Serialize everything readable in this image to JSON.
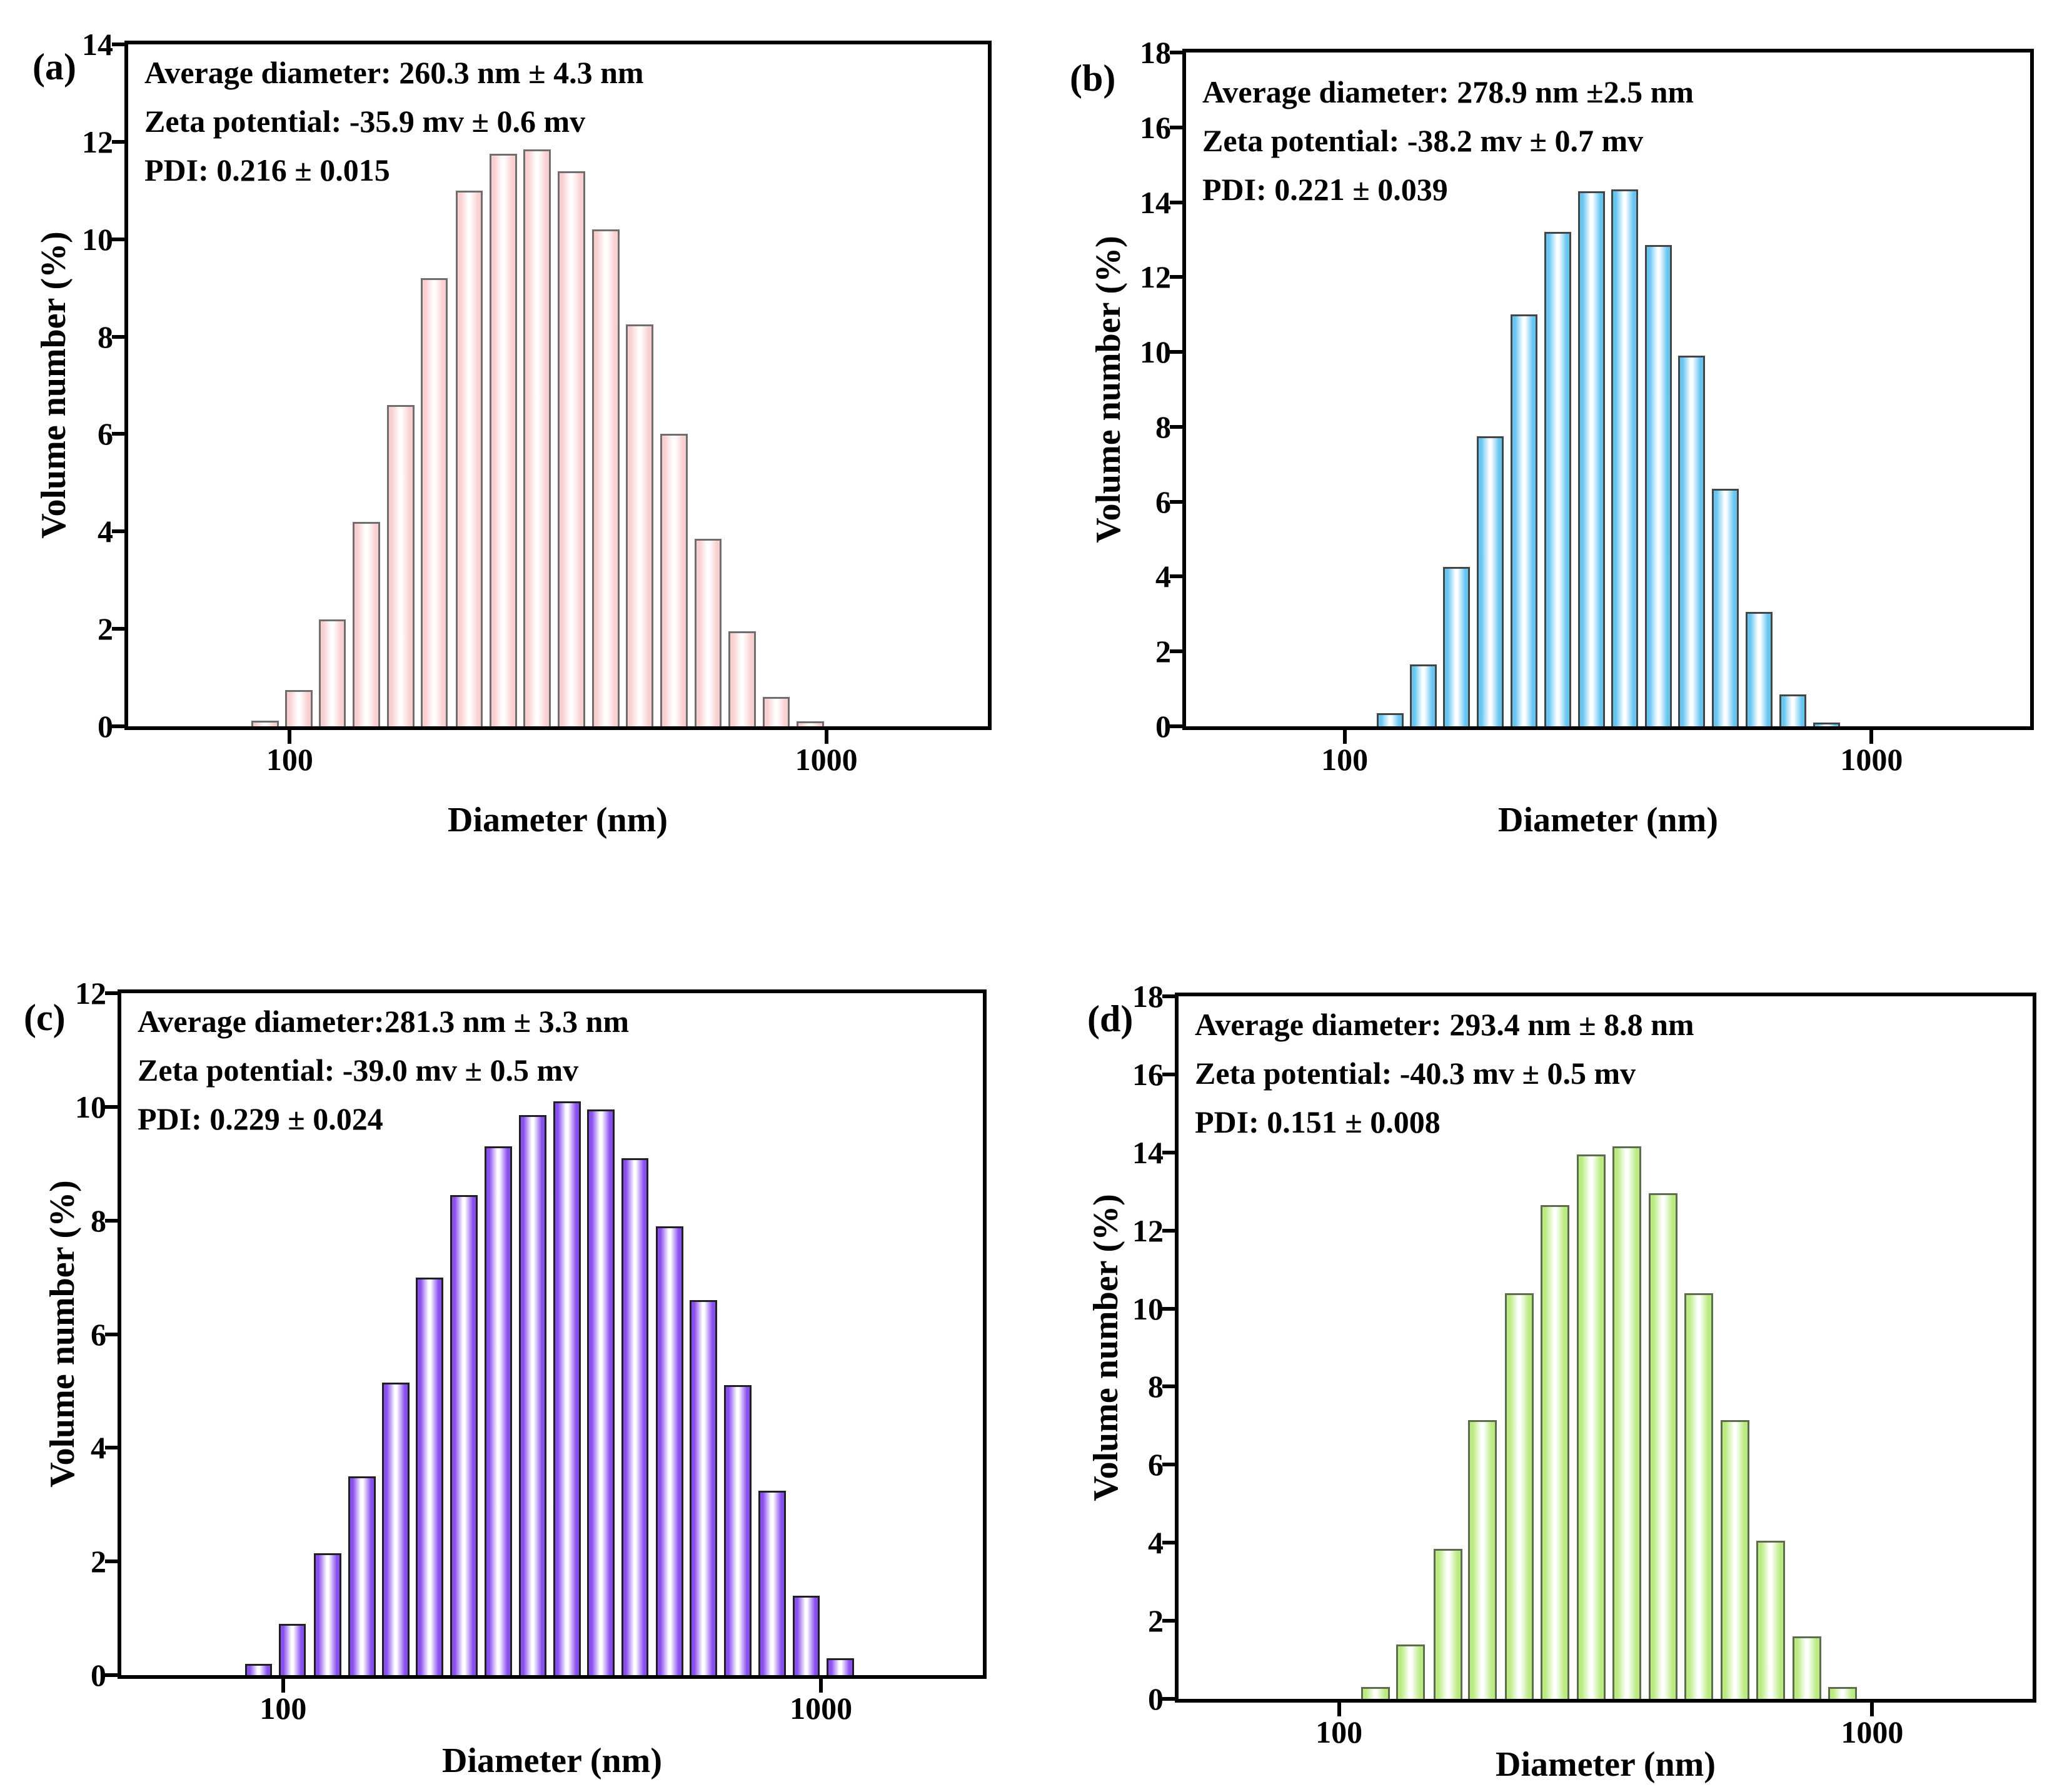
{
  "colors": {
    "background": "#ffffff",
    "axis": "#000000",
    "panel_a_bar": "#f9cfcf",
    "panel_b_bar": "#66c6f2",
    "panel_c_bar": "#8a4ff0",
    "panel_d_bar": "#b9eb80"
  },
  "chart_data": [
    {
      "id": "a",
      "type": "bar",
      "panel_label": "(a)",
      "annotation_lines": [
        "Average diameter: 260.3 nm ± 4.3 nm",
        "Zeta potential: -35.9 mv ± 0.6 mv",
        "PDI: 0.216 ± 0.015"
      ],
      "xlabel": "Diameter (nm)",
      "ylabel": "Volume number (%)",
      "xscale": "log",
      "xlim": [
        50,
        2000
      ],
      "xticks": [
        100,
        1000
      ],
      "ylim": [
        0,
        14
      ],
      "ytick_step": 2,
      "x_nm": [
        90,
        104,
        120,
        139,
        161,
        186,
        216,
        250,
        289,
        335,
        388,
        449,
        520,
        602,
        697,
        807,
        934
      ],
      "values": [
        0.12,
        0.75,
        2.2,
        4.2,
        6.6,
        9.2,
        11.0,
        11.75,
        11.85,
        11.4,
        10.2,
        8.25,
        6.0,
        3.85,
        1.95,
        0.6,
        0.1
      ],
      "bar_color": "#f9cfcf",
      "bar_border": "#6e6e6e"
    },
    {
      "id": "b",
      "type": "bar",
      "panel_label": "(b)",
      "annotation_lines": [
        "Average diameter: 278.9 nm ±2.5 nm",
        "Zeta potential: -38.2 mv ± 0.7 mv",
        "PDI: 0.221 ± 0.039"
      ],
      "xlabel": "Diameter (nm)",
      "ylabel": "Volume number (%)",
      "xscale": "log",
      "xlim": [
        50,
        2000
      ],
      "xticks": [
        100,
        1000
      ],
      "ylim": [
        0,
        18
      ],
      "ytick_step": 2,
      "x_nm": [
        122,
        141,
        163,
        189,
        219,
        254,
        294,
        340,
        394,
        456,
        528,
        612,
        709,
        821
      ],
      "values": [
        0.35,
        1.65,
        4.25,
        7.75,
        11.0,
        13.2,
        14.3,
        14.35,
        12.85,
        9.9,
        6.35,
        3.05,
        0.85,
        0.1
      ],
      "bar_color": "#66c6f2",
      "bar_border": "#454545"
    },
    {
      "id": "c",
      "type": "bar",
      "panel_label": "(c)",
      "annotation_lines": [
        "Average diameter:281.3 nm ± 3.3 nm",
        "Zeta potential: -39.0 mv ± 0.5 mv",
        "PDI: 0.229 ± 0.024"
      ],
      "xlabel": "Diameter (nm)",
      "ylabel": "Volume number (%)",
      "xscale": "log",
      "xlim": [
        50,
        2000
      ],
      "xticks": [
        100,
        1000
      ],
      "ylim": [
        0,
        12
      ],
      "ytick_step": 2,
      "x_nm": [
        90,
        104,
        121,
        140,
        162,
        187,
        217,
        251,
        291,
        337,
        390,
        451,
        523,
        605,
        700,
        811,
        939,
        1087
      ],
      "values": [
        0.2,
        0.9,
        2.15,
        3.5,
        5.15,
        7.0,
        8.45,
        9.3,
        9.85,
        10.1,
        9.95,
        9.1,
        7.9,
        6.6,
        5.1,
        3.25,
        1.4,
        0.3
      ],
      "bar_color": "#8a4ff0",
      "bar_border": "#202020"
    },
    {
      "id": "d",
      "type": "bar",
      "panel_label": "(d)",
      "annotation_lines": [
        "Average diameter: 293.4 nm ± 8.8 nm",
        "Zeta potential: -40.3 mv ± 0.5 mv",
        "PDI: 0.151 ± 0.008"
      ],
      "xlabel": "Diameter (nm)",
      "ylabel": "Volume number (%)",
      "xscale": "log",
      "xlim": [
        50,
        2000
      ],
      "xticks": [
        100,
        1000
      ],
      "ylim": [
        0,
        18
      ],
      "ytick_step": 2,
      "x_nm": [
        117,
        136,
        160,
        186,
        218,
        254,
        297,
        347,
        405,
        473,
        553,
        645,
        754,
        881
      ],
      "values": [
        0.3,
        1.4,
        3.85,
        7.15,
        10.4,
        12.65,
        13.95,
        14.15,
        12.95,
        10.4,
        7.15,
        4.05,
        1.6,
        0.3
      ],
      "bar_color": "#b9eb80",
      "bar_border": "#5d6b4f"
    }
  ]
}
